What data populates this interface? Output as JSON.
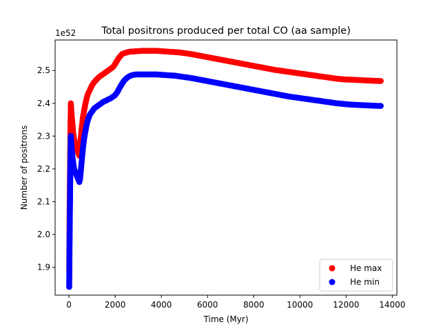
{
  "chart_data": {
    "type": "scatter",
    "title": "Total positrons produced per total CO (aa sample)",
    "xlabel": "Time (Myr)",
    "ylabel": "Number of positrons",
    "y_offset_text": "1e52",
    "xlim": [
      -600,
      14200
    ],
    "ylim": [
      1.815,
      2.593
    ],
    "x_ticks": [
      0,
      2000,
      4000,
      6000,
      8000,
      10000,
      12000,
      14000
    ],
    "y_ticks": [
      1.9,
      2.0,
      2.1,
      2.2,
      2.3,
      2.4,
      2.5
    ],
    "grid": false,
    "legend_position": "lower-right",
    "series": [
      {
        "name": "He max",
        "color": "#ff0000",
        "x": [
          10,
          30,
          60,
          80,
          100,
          120,
          140,
          160,
          180,
          200,
          220,
          250,
          280,
          300,
          330,
          360,
          390,
          420,
          450,
          480,
          520,
          560,
          600,
          650,
          700,
          750,
          800,
          900,
          1000,
          1100,
          1200,
          1300,
          1400,
          1500,
          1600,
          1700,
          1800,
          1900,
          2000,
          2100,
          2200,
          2300,
          2400,
          2500,
          2600,
          2700,
          2800,
          2900,
          3000,
          3200,
          3400,
          3600,
          3800,
          4000,
          4200,
          4400,
          4600,
          4800,
          5000,
          5300,
          5600,
          5900,
          6200,
          6500,
          6800,
          7100,
          7400,
          7700,
          8000,
          8300,
          8600,
          8900,
          9200,
          9500,
          9800,
          10100,
          10400,
          10700,
          11000,
          11300,
          11600,
          11900,
          12200,
          12500,
          12800,
          13100,
          13400,
          13500
        ],
        "values": [
          1.89,
          2.095,
          2.29,
          2.4,
          2.38,
          2.36,
          2.345,
          2.33,
          2.31,
          2.3,
          2.29,
          2.285,
          2.275,
          2.27,
          2.26,
          2.255,
          2.25,
          2.245,
          2.24,
          2.27,
          2.3,
          2.33,
          2.355,
          2.375,
          2.395,
          2.41,
          2.425,
          2.44,
          2.455,
          2.465,
          2.473,
          2.48,
          2.485,
          2.49,
          2.495,
          2.5,
          2.505,
          2.51,
          2.52,
          2.532,
          2.542,
          2.55,
          2.553,
          2.555,
          2.557,
          2.558,
          2.558,
          2.559,
          2.559,
          2.56,
          2.56,
          2.56,
          2.56,
          2.559,
          2.558,
          2.557,
          2.556,
          2.555,
          2.553,
          2.55,
          2.546,
          2.542,
          2.538,
          2.534,
          2.53,
          2.526,
          2.522,
          2.518,
          2.514,
          2.51,
          2.506,
          2.502,
          2.499,
          2.496,
          2.493,
          2.49,
          2.487,
          2.484,
          2.481,
          2.478,
          2.475,
          2.473,
          2.472,
          2.471,
          2.47,
          2.469,
          2.468,
          2.468
        ]
      },
      {
        "name": "He min",
        "color": "#0000ff",
        "x": [
          10,
          30,
          60,
          80,
          100,
          120,
          140,
          160,
          180,
          200,
          220,
          250,
          280,
          300,
          330,
          360,
          390,
          420,
          450,
          480,
          520,
          560,
          600,
          650,
          700,
          750,
          800,
          900,
          1000,
          1100,
          1200,
          1300,
          1400,
          1500,
          1600,
          1700,
          1800,
          1900,
          2000,
          2100,
          2200,
          2300,
          2400,
          2500,
          2600,
          2700,
          2800,
          2900,
          3000,
          3200,
          3400,
          3600,
          3800,
          4000,
          4200,
          4400,
          4600,
          4800,
          5000,
          5300,
          5600,
          5900,
          6200,
          6500,
          6800,
          7100,
          7400,
          7700,
          8000,
          8300,
          8600,
          8900,
          9200,
          9500,
          9800,
          10100,
          10400,
          10700,
          11000,
          11300,
          11600,
          11900,
          12200,
          12500,
          12800,
          13100,
          13400,
          13500
        ],
        "values": [
          1.84,
          2.01,
          2.2,
          2.3,
          2.28,
          2.26,
          2.245,
          2.23,
          2.22,
          2.21,
          2.2,
          2.195,
          2.19,
          2.185,
          2.18,
          2.175,
          2.17,
          2.165,
          2.16,
          2.17,
          2.2,
          2.23,
          2.26,
          2.29,
          2.31,
          2.33,
          2.345,
          2.365,
          2.375,
          2.385,
          2.39,
          2.395,
          2.4,
          2.405,
          2.408,
          2.412,
          2.415,
          2.42,
          2.425,
          2.435,
          2.448,
          2.46,
          2.47,
          2.477,
          2.482,
          2.485,
          2.487,
          2.488,
          2.488,
          2.488,
          2.488,
          2.488,
          2.488,
          2.487,
          2.486,
          2.485,
          2.484,
          2.482,
          2.48,
          2.477,
          2.473,
          2.469,
          2.465,
          2.461,
          2.457,
          2.453,
          2.449,
          2.445,
          2.441,
          2.437,
          2.433,
          2.429,
          2.425,
          2.421,
          2.418,
          2.415,
          2.412,
          2.409,
          2.406,
          2.403,
          2.4,
          2.398,
          2.396,
          2.395,
          2.394,
          2.393,
          2.392,
          2.392
        ]
      }
    ]
  }
}
